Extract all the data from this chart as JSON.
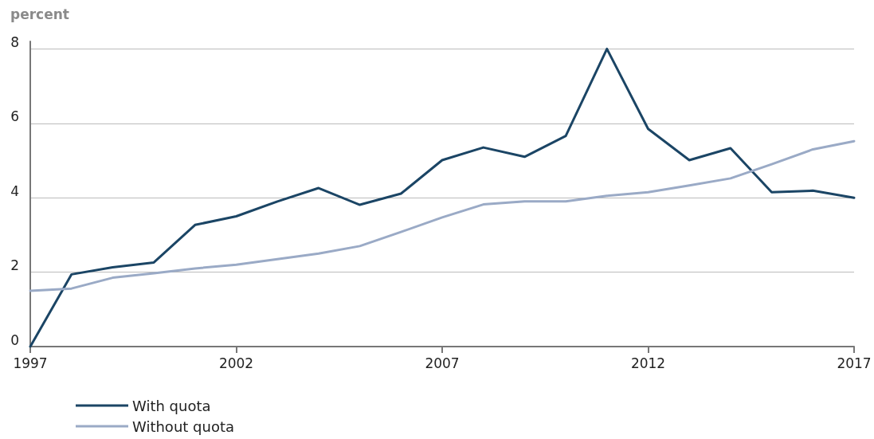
{
  "chart_data": {
    "type": "line",
    "ylabel": "percent",
    "x": [
      1997,
      1998,
      1999,
      2000,
      2001,
      2002,
      2003,
      2004,
      2005,
      2006,
      2007,
      2008,
      2009,
      2010,
      2011,
      2012,
      2013,
      2014,
      2015,
      2016,
      2017
    ],
    "series": [
      {
        "name": "With quota",
        "color": "#1b4565",
        "values": [
          0,
          1.94,
          2.13,
          2.26,
          3.27,
          3.5,
          3.9,
          4.26,
          3.81,
          4.11,
          5.01,
          5.35,
          5.1,
          5.66,
          8.0,
          5.85,
          5.01,
          5.33,
          4.15,
          4.19,
          4.0
        ]
      },
      {
        "name": "Without quota",
        "color": "#9aaac6",
        "values": [
          1.5,
          1.56,
          1.85,
          1.97,
          2.1,
          2.2,
          2.35,
          2.5,
          2.7,
          3.08,
          3.47,
          3.82,
          3.9,
          3.9,
          4.05,
          4.15,
          4.33,
          4.52,
          4.9,
          5.3,
          5.52
        ]
      }
    ],
    "xlim": [
      1997,
      2017
    ],
    "xticks": [
      1997,
      2002,
      2007,
      2012,
      2017
    ],
    "ylim": [
      0,
      8.2
    ],
    "yticks": [
      0,
      2,
      4,
      6,
      8
    ],
    "grid": "y",
    "legend": "bottom left",
    "marker": "none",
    "line_style": "solid"
  }
}
